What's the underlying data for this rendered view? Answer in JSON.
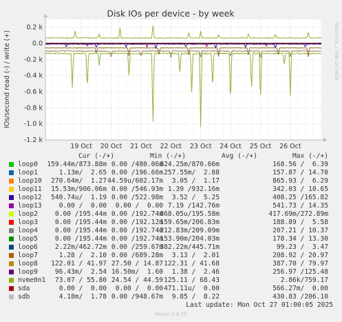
{
  "chart_data": {
    "type": "line",
    "title": "Disk IOs per device - by week",
    "ylabel": "IOs/second read (-) / write (+)",
    "side_label": "RRDTOOL / TOBI OETIKER",
    "ylim": [
      -1200,
      300
    ],
    "y_ticks": [
      {
        "v": 200,
        "label": "0.2 k"
      },
      {
        "v": 0,
        "label": "0.0"
      },
      {
        "v": -200,
        "label": "-0.2 k"
      },
      {
        "v": -400,
        "label": "-0.4 k"
      },
      {
        "v": -600,
        "label": "-0.6 k"
      },
      {
        "v": -800,
        "label": "-0.8 k"
      },
      {
        "v": -1000,
        "label": "-1.0 k"
      },
      {
        "v": -1200,
        "label": "-1.2 k"
      }
    ],
    "x_labels": [
      "19 Oct",
      "20 Oct",
      "21 Oct",
      "22 Oct",
      "23 Oct",
      "24 Oct",
      "25 Oct",
      "26 Oct"
    ],
    "x_range_days": [
      17.8,
      27.04
    ],
    "x_label_days": [
      19,
      20,
      21,
      22,
      23,
      24,
      25,
      26
    ],
    "series": [
      {
        "name": "nvme0n1",
        "color": "#8fb339",
        "write_base": 68,
        "read_base": -125,
        "read_spikes": [
          [
            18.7,
            -560
          ],
          [
            19.2,
            -600
          ],
          [
            19.6,
            -280
          ],
          [
            20.6,
            -430
          ],
          [
            21.4,
            -1060
          ],
          [
            22.3,
            -380
          ],
          [
            22.7,
            -640
          ],
          [
            23.0,
            -1100
          ],
          [
            23.4,
            -600
          ],
          [
            24.0,
            -780
          ],
          [
            24.7,
            -620
          ],
          [
            25.0,
            -750
          ],
          [
            25.8,
            -280
          ],
          [
            26.0,
            -660
          ]
        ],
        "write_spikes": [
          [
            18.8,
            170
          ],
          [
            19.6,
            120
          ],
          [
            20.3,
            210
          ],
          [
            21.4,
            240
          ],
          [
            22.6,
            140
          ],
          [
            23.0,
            160
          ],
          [
            23.6,
            110
          ],
          [
            24.6,
            130
          ],
          [
            25.5,
            120
          ],
          [
            26.6,
            140
          ]
        ]
      },
      {
        "name": "loop9",
        "color": "#8a6a2a",
        "write_base": 3,
        "read_base": -55,
        "read_spikes": [
          [
            19.5,
            -130
          ],
          [
            20.6,
            -170
          ],
          [
            21.6,
            -160
          ],
          [
            22.6,
            -150
          ],
          [
            23.6,
            -170
          ],
          [
            24.6,
            -160
          ],
          [
            25.6,
            -150
          ],
          [
            26.6,
            -170
          ]
        ],
        "write_spikes": []
      },
      {
        "name": "loop8",
        "color": "#a08050",
        "write_base": 2,
        "read_base": -95,
        "read_spikes": [
          [
            20.0,
            -180
          ],
          [
            21.0,
            -170
          ],
          [
            22.0,
            -190
          ],
          [
            23.0,
            -180
          ],
          [
            24.0,
            -170
          ],
          [
            25.0,
            -190
          ],
          [
            26.0,
            -170
          ]
        ],
        "write_spikes": []
      },
      {
        "name": "loop12",
        "color": "#330099",
        "write_base": 1,
        "read_base": -8,
        "read_spikes": [
          [
            18.5,
            -45
          ],
          [
            19.5,
            -60
          ],
          [
            20.5,
            -45
          ],
          [
            21.5,
            -60
          ],
          [
            22.5,
            -45
          ],
          [
            23.5,
            -60
          ],
          [
            24.5,
            -45
          ],
          [
            25.5,
            -60
          ],
          [
            26.5,
            -45
          ]
        ],
        "write_spikes": []
      },
      {
        "name": "loop10",
        "color": "#ff8000",
        "write_base": 0,
        "read_base": -3,
        "read_spikes": [],
        "write_spikes": []
      },
      {
        "name": "loop13",
        "color": "#990099",
        "write_base": 0,
        "read_base": -2,
        "read_spikes": [
          [
            19.2,
            -40
          ],
          [
            21.2,
            -50
          ],
          [
            23.2,
            -45
          ],
          [
            25.2,
            -40
          ]
        ],
        "write_spikes": []
      }
    ]
  },
  "legend": {
    "headers": {
      "cur": "Cur (-/+)",
      "min": "Min (-/+)",
      "avg": "Avg (-/+)",
      "max": "Max (-/+)"
    },
    "rows": [
      {
        "name": "loop0",
        "color": "#00cc00",
        "cur": "159.44m/873.88m",
        "min": "0.00 /480.06m",
        "avg": "824.25m/870.66m",
        "max": "168.56 /  6.39"
      },
      {
        "name": "loop1",
        "color": "#0066b3",
        "cur": "1.13m/  2.65",
        "min": "0.00 /196.66m",
        "avg": "257.55m/  2.88",
        "max": "157.87 / 14.70"
      },
      {
        "name": "loop10",
        "color": "#ff8000",
        "cur": "270.64m/  1.27",
        "min": "44.59u/602.17m",
        "avg": "3.05 /  1.17",
        "max": "865.93 /  6.29"
      },
      {
        "name": "loop11",
        "color": "#ffcc00",
        "cur": "15.53m/906.06m",
        "min": "0.00 /546.93m",
        "avg": "1.39 /932.16m",
        "max": "342.03 / 10.65"
      },
      {
        "name": "loop12",
        "color": "#330099",
        "cur": "540.74u/  1.19",
        "min": "0.00 /522.98m",
        "avg": "3.52 /  5.25",
        "max": "408.25 /165.82"
      },
      {
        "name": "loop13",
        "color": "#990099",
        "cur": "0.00 /  0.00",
        "min": "0.00 /  0.00",
        "avg": "7.19 /142.76m",
        "max": "541.73 / 14.35"
      },
      {
        "name": "loop2",
        "color": "#ccff00",
        "cur": "0.00 /195.44m",
        "min": "0.00 /192.74m",
        "avg": "868.05u/195.58m",
        "max": "417.69m/272.89m"
      },
      {
        "name": "loop3",
        "color": "#ff0000",
        "cur": "0.00 /195.44m",
        "min": "0.00 /192.12m",
        "avg": "159.65m/206.83m",
        "max": "188.89 /  5.58"
      },
      {
        "name": "loop4",
        "color": "#808080",
        "cur": "0.00 /195.44m",
        "min": "0.00 /192.74m",
        "avg": "212.83m/209.09m",
        "max": "207.21 / 10.37"
      },
      {
        "name": "loop5",
        "color": "#008f00",
        "cur": "0.00 /195.44m",
        "min": "0.00 /192.74m",
        "avg": "153.90m/204.03m",
        "max": "178.34 / 13.30"
      },
      {
        "name": "loop6",
        "color": "#00487d",
        "cur": "2.22m/462.72m",
        "min": "0.00 /259.67m",
        "avg": "382.22m/445.71m",
        "max": "99.23 /  3.47"
      },
      {
        "name": "loop7",
        "color": "#b35a00",
        "cur": "1.28 /  2.10",
        "min": "0.00 /689.28m",
        "avg": "3.13 /  2.01",
        "max": "208.92 / 20.97"
      },
      {
        "name": "loop8",
        "color": "#b38f00",
        "cur": "122.01 / 41.97",
        "min": "27.50 / 14.87",
        "avg": "122.31 / 41.68",
        "max": "387.70 / 79.97"
      },
      {
        "name": "loop9",
        "color": "#6b006b",
        "cur": "96.43m/  2.54",
        "min": "16.50m/  1.60",
        "avg": "1.38 /  2.46",
        "max": "256.97 /125.48"
      },
      {
        "name": "nvme0n1",
        "color": "#8fb300",
        "cur": "73.07 / 55.80",
        "min": "24.54 / 44.59",
        "avg": "125.11 / 68.43",
        "max": "2.86k/759.17"
      },
      {
        "name": "sda",
        "color": "#b30000",
        "cur": "0.00 /  0.00",
        "min": "0.00 /  0.00",
        "avg": "471.11u/  0.00",
        "max": "566.27m/  0.00"
      },
      {
        "name": "sdb",
        "color": "#bebebe",
        "cur": "4.18m/  1.78",
        "min": "0.00 /948.67m",
        "avg": "9.85 /  8.22",
        "max": "430.83 /206.10"
      }
    ]
  },
  "footer": {
    "last_update": "Last update: Mon Oct 27 01:00:05 2025",
    "munin": "Munin 2.0.73"
  }
}
